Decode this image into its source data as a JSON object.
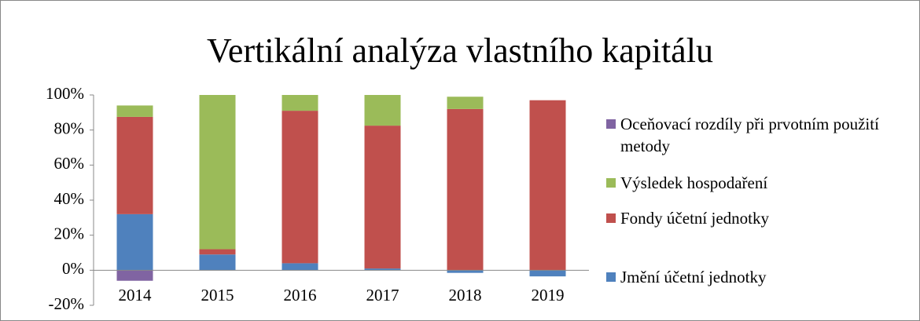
{
  "chart_data": {
    "type": "bar",
    "stacked": true,
    "title": "Vertikální analýza vlastního kapitálu",
    "categories": [
      "2014",
      "2015",
      "2016",
      "2017",
      "2018",
      "2019"
    ],
    "series": [
      {
        "name": "Jmění účetní jednotky",
        "color": "#4f81bd",
        "values": [
          32,
          9,
          4,
          1,
          -1.5,
          -3.5
        ]
      },
      {
        "name": "Fondy účetní jednotky",
        "color": "#c0504d",
        "values": [
          55.5,
          3,
          87,
          81.5,
          92,
          97
        ]
      },
      {
        "name": "Výsledek hospodaření",
        "color": "#9bbb59",
        "values": [
          6.5,
          88,
          9,
          17.5,
          7,
          0
        ]
      },
      {
        "name": "Oceňovací rozdíly při prvotním použití metody",
        "color": "#8064a2",
        "values": [
          -6,
          0,
          0,
          0,
          0,
          0
        ]
      }
    ],
    "ylim": [
      -20,
      100
    ],
    "yticks": [
      {
        "value": -20,
        "label": "-20%"
      },
      {
        "value": 0,
        "label": "0%"
      },
      {
        "value": 20,
        "label": "20%"
      },
      {
        "value": 40,
        "label": "40%"
      },
      {
        "value": 60,
        "label": "60%"
      },
      {
        "value": 80,
        "label": "80%"
      },
      {
        "value": 100,
        "label": "100%"
      }
    ],
    "legend": "right",
    "grid": false
  }
}
